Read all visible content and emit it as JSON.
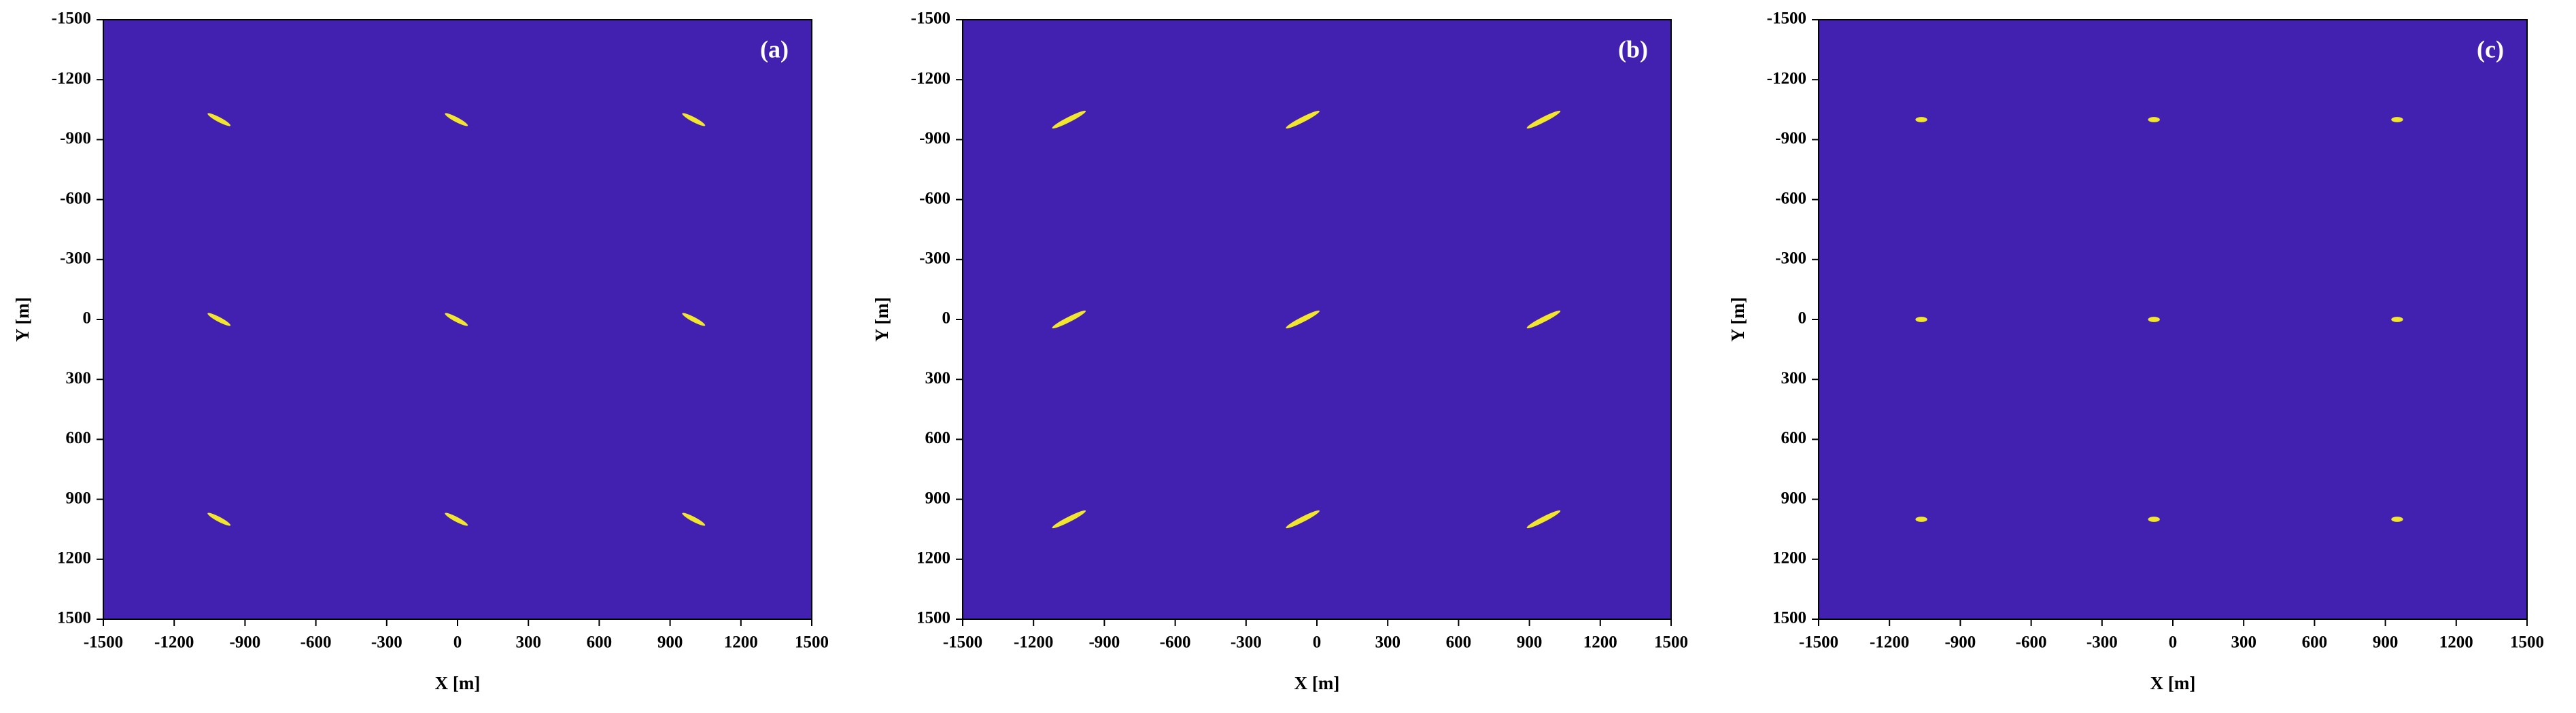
{
  "chart_data": [
    {
      "type": "scatter",
      "panel_label": "(a)",
      "xlabel": "X [m]",
      "ylabel": "Y [m]",
      "x": [
        -1010,
        -5,
        1000,
        -1010,
        -5,
        1000,
        -1010,
        -5,
        1000
      ],
      "y": [
        -1000,
        -1000,
        -1000,
        0,
        0,
        0,
        1000,
        1000,
        1000
      ],
      "marker_length": 110,
      "marker_width": 24,
      "marker_angle": 28,
      "color": "#f2e52e",
      "background": "#4220b0",
      "xlim": [
        -1500,
        1500
      ],
      "ylim": [
        -1500,
        1500
      ],
      "y_inverted": true,
      "xticks": [
        -1500,
        -1200,
        -900,
        -600,
        -300,
        0,
        300,
        600,
        900,
        1200,
        1500
      ],
      "yticks": [
        -1500,
        -1200,
        -900,
        -600,
        -300,
        0,
        300,
        600,
        900,
        1200,
        1500
      ]
    },
    {
      "type": "scatter",
      "panel_label": "(b)",
      "xlabel": "X [m]",
      "ylabel": "Y [m]",
      "x": [
        -1050,
        -60,
        960,
        -1050,
        -60,
        960,
        -1050,
        -60,
        960
      ],
      "y": [
        -1000,
        -1000,
        -1000,
        0,
        0,
        0,
        1000,
        1000,
        1000
      ],
      "marker_length": 160,
      "marker_width": 26,
      "marker_angle": -27,
      "color": "#f2e52e",
      "background": "#4220b0",
      "xlim": [
        -1500,
        1500
      ],
      "ylim": [
        -1500,
        1500
      ],
      "y_inverted": true,
      "xticks": [
        -1500,
        -1200,
        -900,
        -600,
        -300,
        0,
        300,
        600,
        900,
        1200,
        1500
      ],
      "yticks": [
        -1500,
        -1200,
        -900,
        -600,
        -300,
        0,
        300,
        600,
        900,
        1200,
        1500
      ]
    },
    {
      "type": "scatter",
      "panel_label": "(c)",
      "xlabel": "X [m]",
      "ylabel": "Y [m]",
      "x": [
        -1065,
        -80,
        950,
        -1065,
        -80,
        950,
        -1065,
        -80,
        950
      ],
      "y": [
        -1000,
        -1000,
        -1000,
        0,
        0,
        0,
        1000,
        1000,
        1000
      ],
      "marker_length": 50,
      "marker_width": 26,
      "marker_angle": 0,
      "color": "#f2e52e",
      "background": "#4220b0",
      "xlim": [
        -1500,
        1500
      ],
      "ylim": [
        -1500,
        1500
      ],
      "y_inverted": true,
      "xticks": [
        -1500,
        -1200,
        -900,
        -600,
        -300,
        0,
        300,
        600,
        900,
        1200,
        1500
      ],
      "yticks": [
        -1500,
        -1200,
        -900,
        -600,
        -300,
        0,
        300,
        600,
        900,
        1200,
        1500
      ]
    }
  ]
}
